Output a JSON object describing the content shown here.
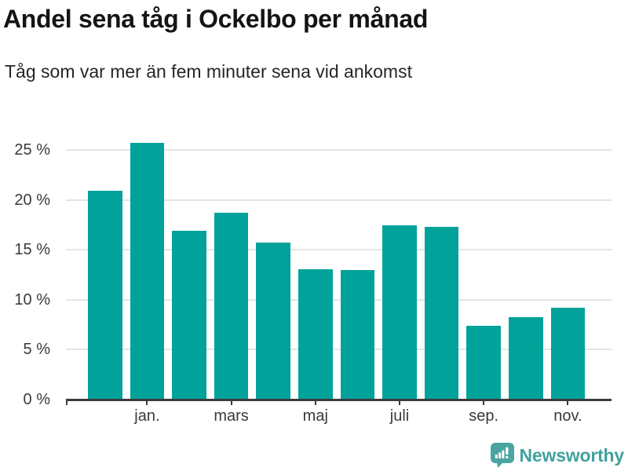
{
  "header": {
    "title": "Andel sena tåg i Ockelbo per månad",
    "subtitle": "Tåg som var mer än fem minuter sena vid ankomst"
  },
  "chart_data": {
    "type": "bar",
    "title": "Andel sena tåg i Ockelbo per månad",
    "subtitle": "Tåg som var mer än fem minuter sena vid ankomst",
    "unit": "%",
    "values": [
      20.9,
      25.7,
      16.9,
      18.7,
      15.7,
      13.1,
      13.0,
      17.5,
      17.3,
      7.4,
      8.3,
      9.2
    ],
    "x_tick_labels": [
      "",
      "jan.",
      "",
      "mars",
      "",
      "maj",
      "",
      "juli",
      "",
      "sep.",
      "",
      "nov."
    ],
    "y_ticks": [
      0,
      5,
      10,
      15,
      20,
      25
    ],
    "y_tick_labels": [
      "0 %",
      "5 %",
      "10 %",
      "15 %",
      "20 %",
      "25 %"
    ],
    "ylim": [
      0,
      27.3
    ],
    "grid": "horizontal",
    "legend": "none",
    "bar_color": "#00A29A",
    "axis_color": "#3B3B3B",
    "gridline_color": "#E4E4E4"
  },
  "footer": {
    "brand": "Newsworthy",
    "brand_color": "#41A19D"
  }
}
